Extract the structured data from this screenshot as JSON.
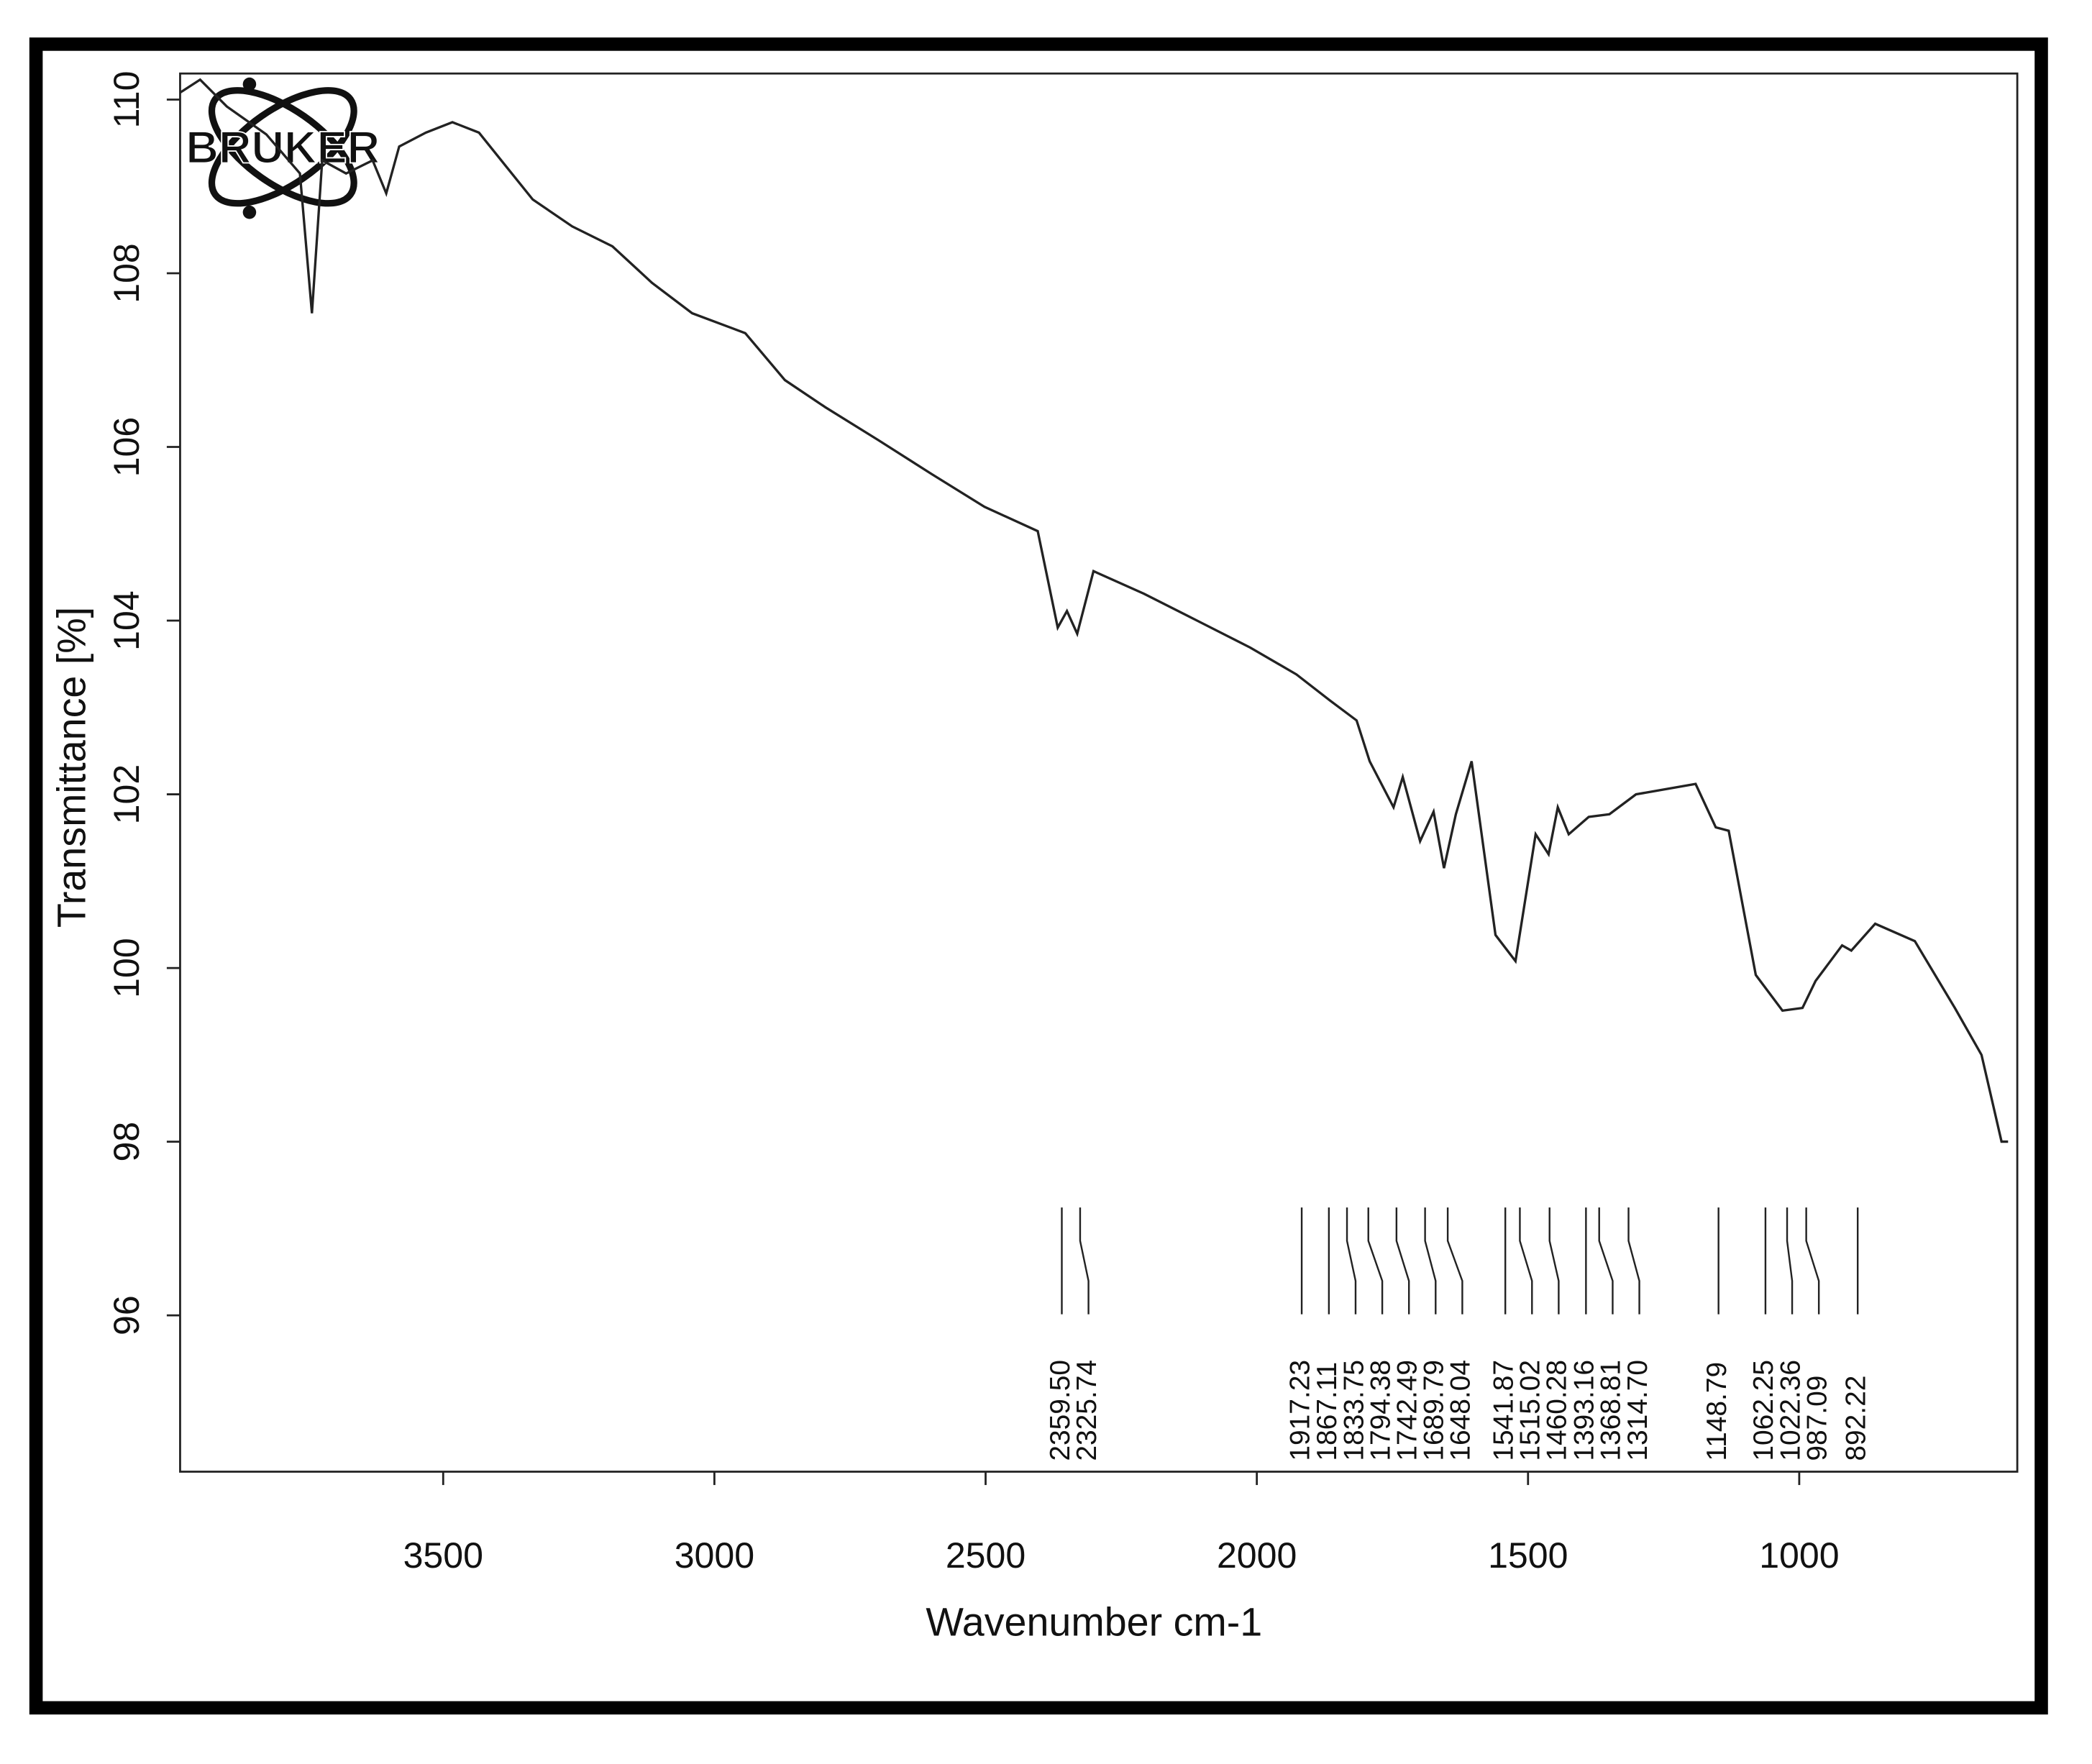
{
  "chart_data": {
    "type": "line",
    "logo": "BRUKER",
    "xlabel": "Wavenumber cm-1",
    "ylabel": "Transmittance [%]",
    "xlim": [
      3985,
      598
    ],
    "ylim": [
      94.2,
      110.3
    ],
    "xticks": [
      3500,
      3000,
      2500,
      2000,
      1500,
      1000
    ],
    "yticks": [
      96,
      98,
      100,
      102,
      104,
      106,
      108,
      110
    ],
    "color": "#222222",
    "x": [
      3985,
      3948,
      3899,
      3826,
      3764,
      3742,
      3723,
      3679,
      3630,
      3605,
      3581,
      3532,
      3483,
      3434,
      3384,
      3335,
      3262,
      3188,
      3115,
      3041,
      2943,
      2870,
      2796,
      2698,
      2600,
      2502,
      2404,
      2367,
      2350,
      2331,
      2301,
      2208,
      2110,
      2012,
      1927,
      1865,
      1816,
      1792,
      1748,
      1731,
      1699,
      1674,
      1655,
      1633,
      1604,
      1560,
      1523,
      1486,
      1462,
      1445,
      1425,
      1388,
      1350,
      1301,
      1191,
      1154,
      1130,
      1080,
      1031,
      994,
      970,
      921,
      904,
      860,
      787,
      713,
      664,
      627,
      615
    ],
    "values": [
      110.08,
      110.23,
      109.92,
      109.6,
      109.15,
      107.54,
      109.3,
      109.15,
      109.3,
      108.92,
      109.46,
      109.62,
      109.74,
      109.62,
      109.23,
      108.85,
      108.54,
      108.31,
      107.89,
      107.54,
      107.31,
      106.77,
      106.46,
      106.08,
      105.69,
      105.31,
      105.03,
      103.92,
      104.11,
      103.85,
      104.57,
      104.31,
      104.0,
      103.69,
      103.38,
      103.08,
      102.85,
      102.38,
      101.85,
      102.2,
      101.46,
      101.8,
      101.15,
      101.77,
      102.38,
      100.38,
      100.08,
      101.54,
      101.31,
      101.85,
      101.54,
      101.74,
      101.77,
      102.0,
      102.12,
      101.62,
      101.58,
      99.92,
      99.51,
      99.54,
      99.85,
      100.26,
      100.2,
      100.51,
      100.31,
      99.54,
      99.0,
      98.0,
      98.0
    ],
    "peaks": {
      "values": [
        2359.5,
        2325.74,
        1917.23,
        1867.11,
        1833.75,
        1794.38,
        1742.49,
        1689.79,
        1648.04,
        1541.87,
        1515.02,
        1460.28,
        1393.16,
        1368.81,
        1314.7,
        1148.79,
        1062.25,
        1022.36,
        987.09,
        892.22
      ],
      "value_labels": [
        "2359.50",
        "2325.74",
        "1917.23",
        "1867.11",
        "1833.75",
        "1794.38",
        "1742.49",
        "1689.79",
        "1648.04",
        "1541.87",
        "1515.02",
        "1460.28",
        "1393.16",
        "1368.81",
        "1314.70",
        "1148.79",
        "1062.25",
        "1022.36",
        "987.09",
        "892.22"
      ]
    }
  }
}
